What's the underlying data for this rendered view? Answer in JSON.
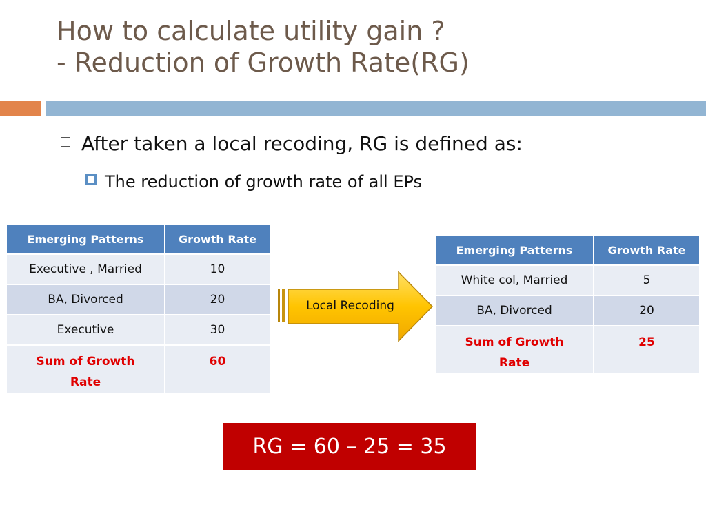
{
  "slide": {
    "title_line1": "How to calculate utility gain ?",
    "title_line2": "- Reduction of Growth Rate(RG)",
    "accent_colors": {
      "orange": "#e2844b",
      "blue": "#92b5d3",
      "table_header": "#4f81bd",
      "result_box": "#c00000",
      "sum_text": "#e00000"
    }
  },
  "bullets": {
    "level1": "After taken a local recoding, RG is defined as:",
    "level2": "The reduction of growth rate of all EPs"
  },
  "table_before": {
    "headers": [
      "Emerging Patterns",
      "Growth Rate"
    ],
    "rows": [
      [
        "Executive , Married",
        "10"
      ],
      [
        "BA, Divorced",
        "20"
      ],
      [
        "Executive",
        "30"
      ]
    ],
    "sum_label_line1": "Sum of Growth",
    "sum_label_line2": "Rate",
    "sum_value": "60"
  },
  "arrow": {
    "label": "Local Recoding"
  },
  "table_after": {
    "headers": [
      "Emerging Patterns",
      "Growth Rate"
    ],
    "rows": [
      [
        "White col,  Married",
        "5"
      ],
      [
        "BA, Divorced",
        "20"
      ]
    ],
    "sum_label_line1": "Sum of Growth",
    "sum_label_line2": "Rate",
    "sum_value": "25"
  },
  "result": {
    "text": "RG = 60 – 25 = 35"
  }
}
